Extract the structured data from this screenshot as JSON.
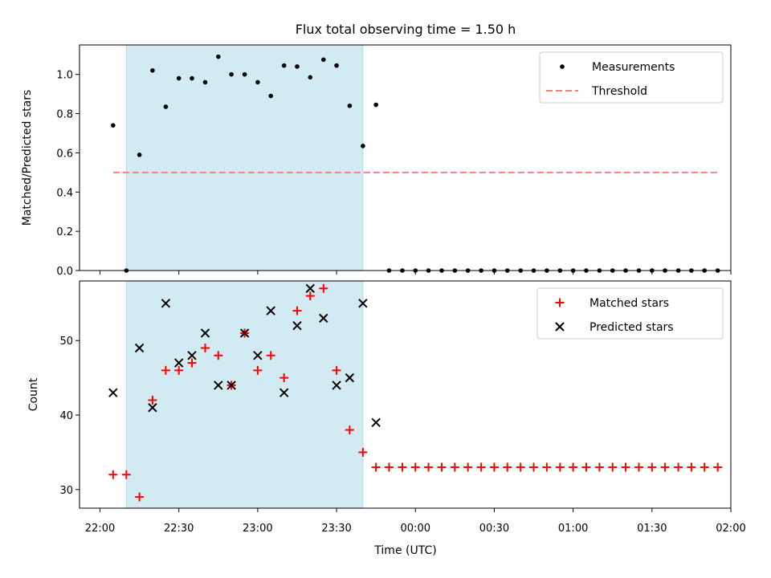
{
  "chart_data": {
    "type": "scatter",
    "title": "Flux total observing time = 1.50 h",
    "xlabel": "Time (UTC)",
    "x_tick_labels": [
      "22:00",
      "22:30",
      "23:00",
      "23:30",
      "00:00",
      "00:30",
      "01:00",
      "01:30",
      "02:00"
    ],
    "x_ticks_hours": [
      22.0,
      22.5,
      23.0,
      23.5,
      24.0,
      24.5,
      25.0,
      25.5,
      26.0
    ],
    "x_unit": "hours UTC (values past 24 are after midnight)",
    "xlim_hours": [
      21.87,
      26.0
    ],
    "shaded_span_hours": [
      22.167,
      23.667
    ],
    "shade_color": "#add8e6",
    "panels": [
      {
        "ylabel": "Matched/Predicted stars",
        "ylim": [
          0,
          1.15
        ],
        "y_ticks": [
          0.0,
          0.2,
          0.4,
          0.6,
          0.8,
          1.0
        ],
        "y_tick_labels": [
          "0.0",
          "0.2",
          "0.4",
          "0.6",
          "0.8",
          "1.0"
        ],
        "legend_position": "upper right",
        "series": [
          {
            "name": "Measurements",
            "style": "dot",
            "color": "#000000",
            "x": [
              22.083,
              22.167,
              22.25,
              22.333,
              22.417,
              22.5,
              22.583,
              22.667,
              22.75,
              22.833,
              22.917,
              23.0,
              23.083,
              23.167,
              23.25,
              23.333,
              23.417,
              23.5,
              23.583,
              23.667,
              23.75,
              23.833,
              23.917,
              24.0,
              24.083,
              24.167,
              24.25,
              24.333,
              24.417,
              24.5,
              24.583,
              24.667,
              24.75,
              24.833,
              24.917,
              25.0,
              25.083,
              25.167,
              25.25,
              25.333,
              25.417,
              25.5,
              25.583,
              25.667,
              25.75,
              25.833,
              25.917
            ],
            "y": [
              0.74,
              0.0,
              0.59,
              1.02,
              0.835,
              0.98,
              0.98,
              0.96,
              1.09,
              1.0,
              1.0,
              0.96,
              0.89,
              1.045,
              1.04,
              0.985,
              1.075,
              1.045,
              0.84,
              0.635,
              0.845,
              0.0,
              0.0,
              0.0,
              0.0,
              0.0,
              0.0,
              0.0,
              0.0,
              0.0,
              0.0,
              0.0,
              0.0,
              0.0,
              0.0,
              0.0,
              0.0,
              0.0,
              0.0,
              0.0,
              0.0,
              0.0,
              0.0,
              0.0,
              0.0,
              0.0,
              0.0
            ]
          },
          {
            "name": "Threshold",
            "style": "dashed-line",
            "color": "#ff7f7f",
            "x": [
              22.083,
              25.917
            ],
            "y": [
              0.5,
              0.5
            ]
          }
        ]
      },
      {
        "ylabel": "Count",
        "ylim": [
          27.5,
          58.0
        ],
        "y_ticks": [
          30,
          40,
          50
        ],
        "y_tick_labels": [
          "30",
          "40",
          "50"
        ],
        "legend_position": "upper right",
        "series": [
          {
            "name": "Matched stars",
            "style": "plus",
            "color": "#ff0000",
            "x": [
              22.083,
              22.167,
              22.25,
              22.333,
              22.417,
              22.5,
              22.583,
              22.667,
              22.75,
              22.833,
              22.917,
              23.0,
              23.083,
              23.167,
              23.25,
              23.333,
              23.417,
              23.5,
              23.583,
              23.667,
              23.75,
              23.833,
              23.917,
              24.0,
              24.083,
              24.167,
              24.25,
              24.333,
              24.417,
              24.5,
              24.583,
              24.667,
              24.75,
              24.833,
              24.917,
              25.0,
              25.083,
              25.167,
              25.25,
              25.333,
              25.417,
              25.5,
              25.583,
              25.667,
              25.75,
              25.833,
              25.917
            ],
            "y": [
              32,
              32,
              29,
              42,
              46,
              46,
              47,
              49,
              48,
              44,
              51,
              46,
              48,
              45,
              54,
              56,
              57,
              46,
              38,
              35,
              33,
              33,
              33,
              33,
              33,
              33,
              33,
              33,
              33,
              33,
              33,
              33,
              33,
              33,
              33,
              33,
              33,
              33,
              33,
              33,
              33,
              33,
              33,
              33,
              33,
              33,
              33
            ]
          },
          {
            "name": "Predicted stars",
            "style": "x",
            "color": "#000000",
            "x": [
              22.083,
              22.25,
              22.333,
              22.417,
              22.5,
              22.583,
              22.667,
              22.75,
              22.833,
              22.917,
              23.0,
              23.083,
              23.167,
              23.25,
              23.333,
              23.417,
              23.5,
              23.583,
              23.667,
              23.75
            ],
            "y": [
              43,
              49,
              41,
              55,
              47,
              48,
              51,
              44,
              44,
              51,
              48,
              54,
              43,
              52,
              57,
              53,
              44,
              45,
              55,
              39
            ]
          }
        ]
      }
    ]
  }
}
